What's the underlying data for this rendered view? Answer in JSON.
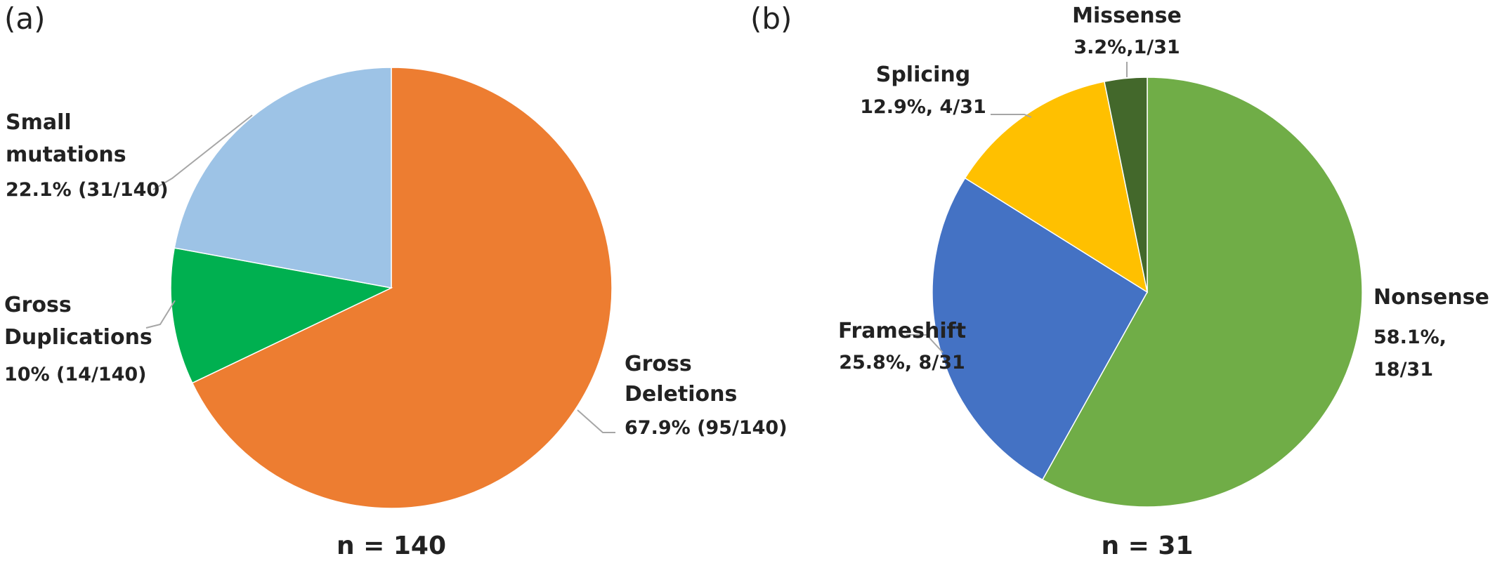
{
  "chart_data": [
    {
      "type": "pie",
      "panel_label": "(a)",
      "n_label": "n = 140",
      "slices": [
        {
          "name": "Gross Deletions",
          "name_lines": [
            "Gross",
            "Deletions"
          ],
          "value": 67.9,
          "label": "67.9% (95/140)",
          "label_lines": [
            "67.9% (95/140)"
          ],
          "color": "#ED7D31"
        },
        {
          "name": "Gross Duplications",
          "name_lines": [
            "Gross",
            "Duplications"
          ],
          "value": 10,
          "label": "10% (14/140)",
          "label_lines": [
            "10% (14/140)"
          ],
          "color": "#00B050"
        },
        {
          "name": "Small mutations",
          "name_lines": [
            "Small",
            "mutations"
          ],
          "value": 22.1,
          "label": "22.1% (31/140)",
          "label_lines": [
            "22.1% (31/140)"
          ],
          "color": "#9DC3E6"
        }
      ]
    },
    {
      "type": "pie",
      "panel_label": "(b)",
      "n_label": "n = 31",
      "slices": [
        {
          "name": "Nonsense",
          "name_lines": [
            "Nonsense"
          ],
          "value": 58.1,
          "label": "58.1%, 18/31",
          "label_lines": [
            "58.1%,",
            "18/31"
          ],
          "color": "#70AD47"
        },
        {
          "name": "Frameshift",
          "name_lines": [
            "Frameshift"
          ],
          "value": 25.8,
          "label": "25.8%, 8/31",
          "label_lines": [
            "25.8%, 8/31"
          ],
          "color": "#4472C4"
        },
        {
          "name": "Splicing",
          "name_lines": [
            "Splicing"
          ],
          "value": 12.9,
          "label": "12.9%, 4/31",
          "label_lines": [
            "12.9%, 4/31"
          ],
          "color": "#FFC000"
        },
        {
          "name": "Missense",
          "name_lines": [
            "Missense"
          ],
          "value": 3.2,
          "label": "3.2%,1/31",
          "label_lines": [
            "3.2%,1/31"
          ],
          "color": "#43682B"
        }
      ]
    }
  ]
}
